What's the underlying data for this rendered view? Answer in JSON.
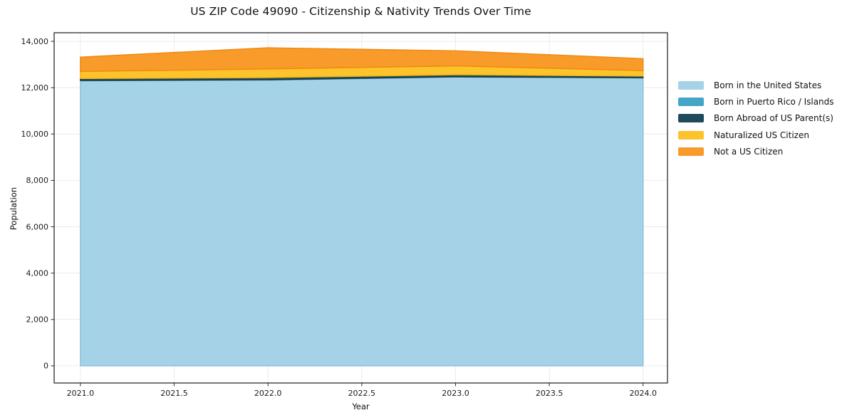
{
  "figure": {
    "title": "US ZIP Code 49090 - Citizenship & Nativity Trends Over Time",
    "background_color": "#ffffff"
  },
  "chart_data": {
    "type": "area",
    "stacked": true,
    "title": "US ZIP Code 49090 - Citizenship & Nativity Trends Over Time",
    "xlabel": "Year",
    "ylabel": "Population",
    "x": [
      2021,
      2022,
      2023,
      2024
    ],
    "series": [
      {
        "name": "Born in the United States",
        "color": "#A6D2E8",
        "edge_color": "#8CC1DD",
        "values": [
          12300,
          12330,
          12460,
          12420
        ]
      },
      {
        "name": "Born in Puerto Rico / Islands",
        "color": "#45A5C6",
        "edge_color": "#3A93B3",
        "values": [
          15,
          15,
          15,
          15
        ]
      },
      {
        "name": "Born Abroad of US Parent(s)",
        "color": "#1F4A5C",
        "edge_color": "#18394A",
        "values": [
          80,
          90,
          85,
          65
        ]
      },
      {
        "name": "Naturalized US Citizen",
        "color": "#FCC32D",
        "edge_color": "#F3B312",
        "values": [
          305,
          375,
          380,
          240
        ]
      },
      {
        "name": "Not a US Citizen",
        "color": "#F89B2B",
        "edge_color": "#EF8A10",
        "values": [
          620,
          910,
          650,
          510
        ]
      }
    ],
    "stack_totals": [
      13320,
      13720,
      13590,
      13250
    ],
    "xlim": [
      2020.86,
      2024.13
    ],
    "ylim": [
      -740,
      14370
    ],
    "x_ticks": [
      2021.0,
      2021.5,
      2022.0,
      2022.5,
      2023.0,
      2023.5,
      2024.0
    ],
    "x_tick_labels": [
      "2021.0",
      "2021.5",
      "2022.0",
      "2022.5",
      "2023.0",
      "2023.5",
      "2024.0"
    ],
    "y_ticks": [
      0,
      2000,
      4000,
      6000,
      8000,
      10000,
      12000,
      14000
    ],
    "y_tick_labels": [
      "0",
      "2,000",
      "4,000",
      "6,000",
      "8,000",
      "10,000",
      "12,000",
      "14,000"
    ],
    "grid": true,
    "legend_position": "right of plot, no frame"
  },
  "style": {
    "grid_color": "#EBEBEB",
    "spine_color": "#2b2b2b",
    "tick_color": "#2b2b2b",
    "tick_label_color": "#1a1a1a",
    "plot_background": "#ffffff"
  }
}
